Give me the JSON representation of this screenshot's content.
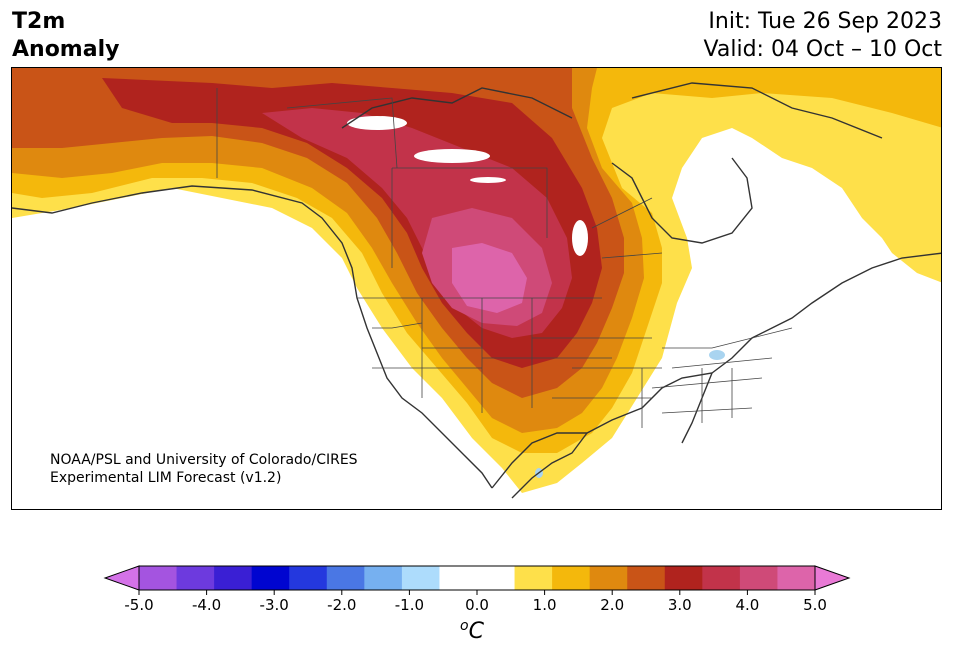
{
  "title": {
    "line1": "T2m",
    "line2": "Anomaly"
  },
  "init": "Init: Tue 26 Sep 2023",
  "valid": "Valid: 04 Oct – 10 Oct",
  "credit": {
    "line1": "NOAA/PSL and University of Colorado/CIRES",
    "line2": "Experimental LIM Forecast (v1.2)"
  },
  "colorbar": {
    "unit_sup": "o",
    "unit_main": "C",
    "ticks": [
      "-5.0",
      "-4.0",
      "-3.0",
      "-2.0",
      "-1.0",
      "0.0",
      "1.0",
      "2.0",
      "3.0",
      "4.0",
      "5.0"
    ],
    "under_color": "#d472e8",
    "over_color": "#e97ad6",
    "bins": [
      "#a454e0",
      "#6d3ade",
      "#3a1fd4",
      "#0005d0",
      "#2438de",
      "#4a77e4",
      "#76b0f0",
      "#addcfc",
      "#ffffff",
      "#ffffff",
      "#fee04a",
      "#f4b80c",
      "#df890f",
      "#c95417",
      "#b0231e",
      "#c2334a",
      "#cf4a78",
      "#dd64aa"
    ]
  },
  "map_colors": {
    "c1": "#fee04a",
    "c2": "#f4b80c",
    "c3": "#df890f",
    "c4": "#c95417",
    "c5": "#b0231e",
    "c6": "#c2334a",
    "c7": "#cf4a78",
    "c8": "#dd64aa",
    "lake": "#a9d4f0"
  }
}
